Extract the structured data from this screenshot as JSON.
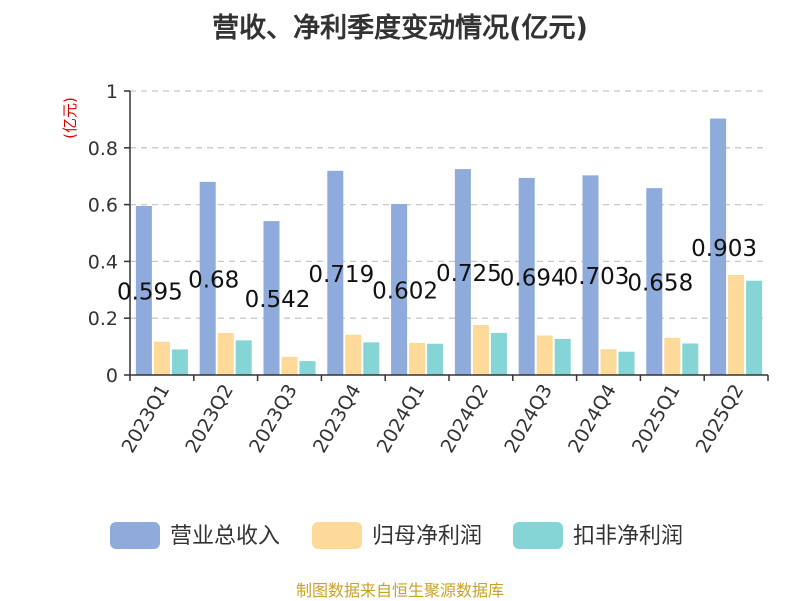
{
  "chart_data": {
    "type": "bar",
    "title": "营收、净利季度变动情况(亿元)",
    "ylabel": "(亿元)",
    "xlabel": "",
    "ylim": [
      0,
      1
    ],
    "yticks": [
      0,
      0.2,
      0.4,
      0.6,
      0.8,
      1
    ],
    "ytick_labels": [
      "0",
      "0.2",
      "0.4",
      "0.6",
      "0.8",
      "1"
    ],
    "grid": true,
    "legend_position": "bottom",
    "categories": [
      "2023Q1",
      "2023Q2",
      "2023Q3",
      "2023Q4",
      "2024Q1",
      "2024Q2",
      "2024Q3",
      "2024Q4",
      "2025Q1",
      "2025Q2"
    ],
    "series": [
      {
        "name": "营业总收入",
        "color": "#8eabdb",
        "values": [
          0.595,
          0.68,
          0.542,
          0.719,
          0.602,
          0.725,
          0.694,
          0.703,
          0.658,
          0.903
        ],
        "data_labels": [
          "0.595",
          "0.68",
          "0.542",
          "0.719",
          "0.602",
          "0.725",
          "0.694",
          "0.703",
          "0.658",
          "0.903"
        ]
      },
      {
        "name": "归母净利润",
        "color": "#fdd99a",
        "values": [
          0.117,
          0.148,
          0.064,
          0.142,
          0.113,
          0.176,
          0.139,
          0.091,
          0.131,
          0.352
        ]
      },
      {
        "name": "扣非净利润",
        "color": "#85d4d6",
        "values": [
          0.09,
          0.122,
          0.049,
          0.115,
          0.11,
          0.148,
          0.127,
          0.082,
          0.111,
          0.332
        ]
      }
    ]
  },
  "source": "制图数据来自恒生聚源数据库"
}
